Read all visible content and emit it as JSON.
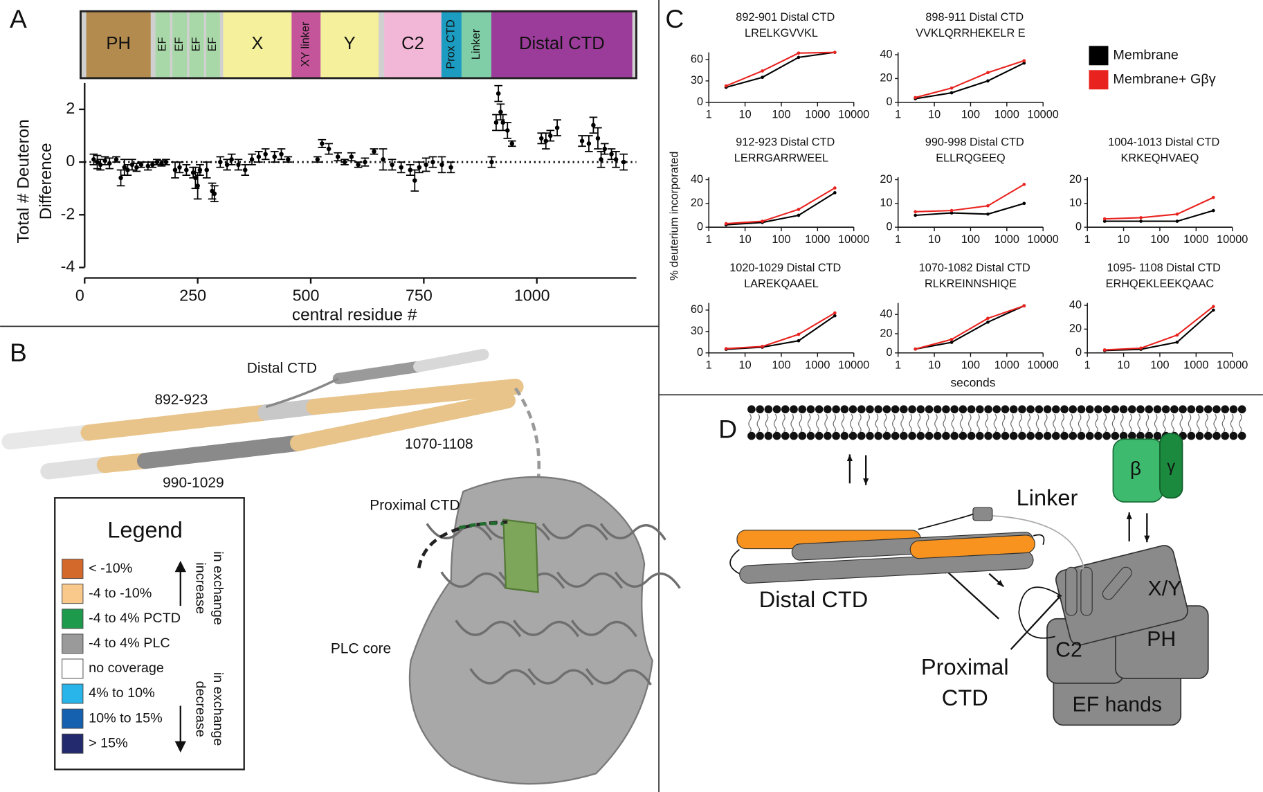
{
  "panel_labels": [
    "A",
    "B",
    "C",
    "D"
  ],
  "domain_map": {
    "domains": [
      {
        "name": "PH",
        "color": "#b38b4f"
      },
      {
        "name": "EF",
        "color": "#a8d8a8"
      },
      {
        "name": "EF",
        "color": "#a8d8a8"
      },
      {
        "name": "EF",
        "color": "#a8d8a8"
      },
      {
        "name": "EF",
        "color": "#a8d8a8"
      },
      {
        "name": "X",
        "color": "#f4f09c"
      },
      {
        "name": "XY linker",
        "color": "#c4559b"
      },
      {
        "name": "Y",
        "color": "#f4f09c"
      },
      {
        "name": "C2",
        "color": "#f2b6d6"
      },
      {
        "name": "Prox CTD",
        "color": "#1b9cc0"
      },
      {
        "name": "Linker",
        "color": "#7fcea7"
      },
      {
        "name": "Distal CTD",
        "color": "#9c3c9a"
      }
    ]
  },
  "chart_data": [
    {
      "type": "scatter",
      "color": "#000000",
      "xlabel": "central residue #",
      "ylabel": [
        "Total # Deuteron",
        "Difference"
      ],
      "xlim": [
        0,
        1220
      ],
      "ylim": [
        -4,
        3
      ],
      "xticks": [
        0,
        250,
        500,
        750,
        1000
      ],
      "yticks": [
        -4,
        -2,
        0,
        2
      ],
      "x": [
        20,
        28,
        35,
        45,
        55,
        70,
        80,
        88,
        95,
        105,
        115,
        125,
        140,
        150,
        160,
        170,
        180,
        200,
        210,
        225,
        240,
        245,
        250,
        255,
        270,
        282,
        287,
        300,
        315,
        325,
        340,
        355,
        370,
        385,
        400,
        420,
        435,
        450,
        515,
        525,
        540,
        560,
        575,
        590,
        605,
        620,
        640,
        660,
        680,
        700,
        720,
        730,
        740,
        755,
        770,
        790,
        810,
        900,
        910,
        915,
        920,
        925,
        935,
        945,
        1010,
        1020,
        1030,
        1045,
        1100,
        1115,
        1125,
        1135,
        1142,
        1150,
        1165,
        1175,
        1192
      ],
      "values": [
        0.1,
        0.0,
        -0.1,
        0.05,
        -0.05,
        0.1,
        -0.6,
        -0.2,
        -0.3,
        -0.1,
        -0.2,
        -0.1,
        -0.15,
        -0.1,
        0.0,
        -0.05,
        0.0,
        -0.3,
        -0.2,
        -0.3,
        -0.4,
        -0.6,
        -0.9,
        -0.3,
        -0.3,
        -1.1,
        -1.2,
        0.0,
        -0.1,
        0.1,
        -0.1,
        -0.3,
        0.1,
        0.2,
        0.3,
        0.2,
        0.3,
        0.1,
        0.1,
        0.7,
        0.5,
        0.2,
        0.0,
        0.2,
        -0.1,
        0.0,
        0.4,
        0.1,
        -0.1,
        -0.2,
        -0.3,
        -0.7,
        -0.2,
        -0.1,
        0.0,
        -0.1,
        -0.2,
        0.0,
        1.5,
        2.6,
        1.9,
        1.5,
        1.2,
        0.7,
        0.9,
        0.8,
        1.0,
        1.3,
        0.8,
        0.7,
        1.4,
        0.9,
        0.1,
        0.5,
        0.3,
        0.1,
        0.0
      ],
      "errors": [
        0.2,
        0.25,
        0.2,
        0.15,
        0.2,
        0.1,
        0.3,
        0.3,
        0.2,
        0.2,
        0.15,
        0.1,
        0.15,
        0.1,
        0.1,
        0.1,
        0.1,
        0.3,
        0.2,
        0.2,
        0.2,
        0.4,
        0.5,
        0.2,
        0.3,
        0.3,
        0.3,
        0.2,
        0.2,
        0.2,
        0.2,
        0.2,
        0.2,
        0.2,
        0.2,
        0.2,
        0.2,
        0.1,
        0.1,
        0.15,
        0.2,
        0.15,
        0.1,
        0.15,
        0.1,
        0.15,
        0.1,
        0.4,
        0.2,
        0.2,
        0.2,
        0.4,
        0.2,
        0.25,
        0.2,
        0.3,
        0.2,
        0.2,
        0.3,
        0.3,
        0.3,
        0.3,
        0.3,
        0.1,
        0.2,
        0.3,
        0.2,
        0.3,
        0.2,
        0.3,
        0.3,
        0.4,
        0.3,
        0.2,
        0.2,
        0.3,
        0.3
      ]
    },
    {
      "type": "line",
      "title": "892-901 Distal CTD",
      "subtitle": "LRELKGVVKL",
      "x": [
        3,
        30,
        300,
        3000
      ],
      "log_x": true,
      "xlim": [
        1,
        10000
      ],
      "xticks": [
        1,
        10,
        100,
        1000,
        10000
      ],
      "ylim": [
        0,
        70
      ],
      "yticks": [
        0,
        30,
        60
      ],
      "series": [
        {
          "name": "Membrane",
          "color": "#000000",
          "values": [
            21,
            35,
            63,
            70
          ]
        },
        {
          "name": "Membrane+ Gβγ",
          "color": "#e8231f",
          "values": [
            23,
            44,
            69,
            70
          ]
        }
      ]
    },
    {
      "type": "line",
      "title": "898-911 Distal CTD",
      "subtitle": "VVKLQRRHEKELR E",
      "x": [
        3,
        30,
        300,
        3000
      ],
      "log_x": true,
      "legend": "right",
      "xlim": [
        1,
        10000
      ],
      "xticks": [
        1,
        10,
        100,
        1000,
        10000
      ],
      "ylim": [
        0,
        42
      ],
      "yticks": [
        0,
        20,
        40
      ],
      "series": [
        {
          "name": "Membrane",
          "color": "#000000",
          "values": [
            3,
            8,
            18,
            33
          ]
        },
        {
          "name": "Membrane+ Gβγ",
          "color": "#e8231f",
          "values": [
            4,
            12,
            25,
            35
          ]
        }
      ]
    },
    {
      "type": "line",
      "title": "912-923 Distal CTD",
      "subtitle": "LERRGARRWEEL",
      "x": [
        3,
        30,
        300,
        3000
      ],
      "log_x": true,
      "xlim": [
        1,
        10000
      ],
      "xticks": [
        1,
        10,
        100,
        1000,
        10000
      ],
      "ylim": [
        0,
        42
      ],
      "yticks": [
        0,
        20,
        40
      ],
      "series": [
        {
          "name": "Membrane",
          "color": "#000000",
          "values": [
            2,
            4,
            10,
            29
          ]
        },
        {
          "name": "Membrane+ Gβγ",
          "color": "#e8231f",
          "values": [
            3,
            5,
            15,
            33
          ]
        }
      ]
    },
    {
      "type": "line",
      "title": "990-998 Distal CTD",
      "subtitle": "ELLRQGEEQ",
      "x": [
        3,
        30,
        300,
        3000
      ],
      "log_x": true,
      "xlim": [
        1,
        10000
      ],
      "xticks": [
        1,
        10,
        100,
        1000,
        10000
      ],
      "ylim": [
        0,
        21
      ],
      "yticks": [
        0,
        10,
        20
      ],
      "series": [
        {
          "name": "Membrane",
          "color": "#000000",
          "values": [
            5,
            6,
            5.5,
            10
          ]
        },
        {
          "name": "Membrane+ Gβγ",
          "color": "#e8231f",
          "values": [
            6.5,
            7,
            9,
            18
          ]
        }
      ]
    },
    {
      "type": "line",
      "title": "1004-1013 Distal CTD",
      "subtitle": "KRKEQHVAEQ",
      "x": [
        3,
        30,
        300,
        3000
      ],
      "log_x": true,
      "xlim": [
        1,
        10000
      ],
      "xticks": [
        1,
        10,
        100,
        1000,
        10000
      ],
      "ylim": [
        0,
        21
      ],
      "yticks": [
        0,
        10,
        20
      ],
      "series": [
        {
          "name": "Membrane",
          "color": "#000000",
          "values": [
            2.5,
            2.5,
            2.5,
            7
          ]
        },
        {
          "name": "Membrane+ Gβγ",
          "color": "#e8231f",
          "values": [
            3.5,
            4,
            5.5,
            12.5
          ]
        }
      ]
    },
    {
      "type": "line",
      "title": "1020-1029 Distal CTD",
      "subtitle": "LAREKQAAEL",
      "x": [
        3,
        30,
        300,
        3000
      ],
      "log_x": true,
      "xlim": [
        1,
        10000
      ],
      "xticks": [
        1,
        10,
        100,
        1000,
        10000
      ],
      "ylim": [
        0,
        70
      ],
      "yticks": [
        0,
        30,
        60
      ],
      "series": [
        {
          "name": "Membrane",
          "color": "#000000",
          "values": [
            5,
            8,
            17,
            52
          ]
        },
        {
          "name": "Membrane+ Gβγ",
          "color": "#e8231f",
          "values": [
            6,
            9,
            26,
            56
          ]
        }
      ]
    },
    {
      "type": "line",
      "title": "1070-1082 Distal CTD",
      "subtitle": "RLKREINNSHIQE",
      "x": [
        3,
        30,
        300,
        3000
      ],
      "log_x": true,
      "xlim": [
        1,
        10000
      ],
      "xticks": [
        1,
        10,
        100,
        1000,
        10000
      ],
      "ylim": [
        0,
        52
      ],
      "yticks": [
        0,
        20,
        40
      ],
      "series": [
        {
          "name": "Membrane",
          "color": "#000000",
          "values": [
            4,
            11,
            32,
            49
          ]
        },
        {
          "name": "Membrane+ Gβγ",
          "color": "#e8231f",
          "values": [
            4,
            14,
            36,
            49
          ]
        }
      ]
    },
    {
      "type": "line",
      "title": "1095- 1108 Distal CTD",
      "subtitle": "ERHQEKLEEKQAAC",
      "x": [
        3,
        30,
        300,
        3000
      ],
      "log_x": true,
      "xlim": [
        1,
        10000
      ],
      "xticks": [
        1,
        10,
        100,
        1000,
        10000
      ],
      "ylim": [
        0,
        42
      ],
      "yticks": [
        0,
        20,
        40
      ],
      "series": [
        {
          "name": "Membrane",
          "color": "#000000",
          "values": [
            2,
            3,
            9,
            36
          ]
        },
        {
          "name": "Membrane+ Gβγ",
          "color": "#e8231f",
          "values": [
            2.5,
            4,
            15,
            39
          ]
        }
      ]
    }
  ],
  "panel_c": {
    "ylabel": "% deuterium incorporated",
    "xlabel": "seconds"
  },
  "structure": {
    "labels": [
      "Distal CTD",
      "892-923",
      "1070-1108",
      "990-1029",
      "Proximal CTD",
      "PLC core"
    ],
    "legend": {
      "title": "Legend",
      "items": [
        {
          "label": "< -10%",
          "color": "#d4692c"
        },
        {
          "label": "-4 to -10%",
          "color": "#f9c98c"
        },
        {
          "label": "-4 to 4% PCTD",
          "color": "#1e9a4c"
        },
        {
          "label": "-4 to 4% PLC",
          "color": "#9a9a9a"
        },
        {
          "label": "no coverage",
          "color": "#ffffff"
        },
        {
          "label": "4% to 10%",
          "color": "#29b5ea"
        },
        {
          "label": "10% to 15%",
          "color": "#1660b0"
        },
        {
          "label": "> 15%",
          "color": "#232a6e"
        }
      ],
      "increase": [
        "increase",
        "in exchange"
      ],
      "decrease": [
        "decrease",
        "in exchange"
      ]
    }
  },
  "diagram": {
    "labels": {
      "linker": "Linker",
      "distal": "Distal CTD",
      "proximal": [
        "Proximal",
        "CTD"
      ],
      "xy": "X/Y",
      "c2": "C2",
      "ph": "PH",
      "ef": "EF hands",
      "beta": "β",
      "gamma": "γ"
    }
  }
}
